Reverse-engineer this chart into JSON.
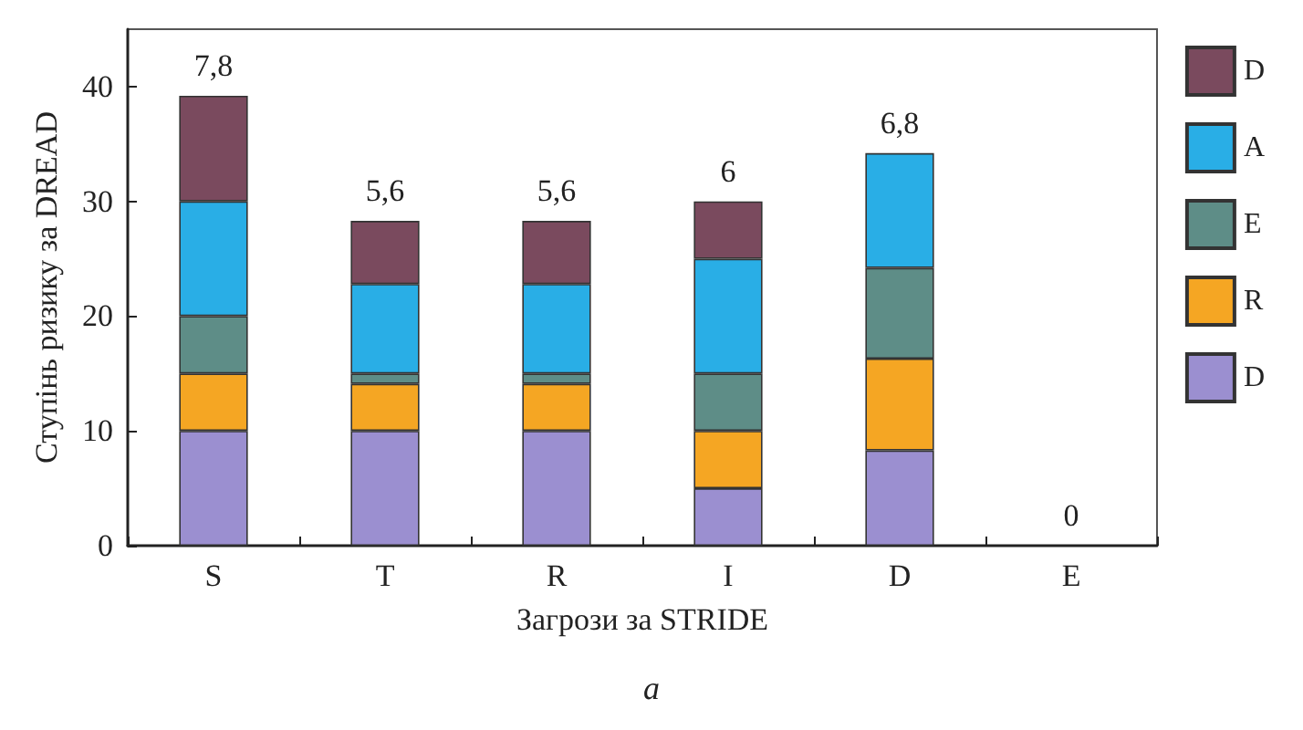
{
  "chart_data": {
    "type": "bar",
    "stacked": true,
    "xlabel": "Загрози за STRIDE",
    "ylabel": "Ступінь ризику за DREAD",
    "annotations": [
      {
        "text": "7,8",
        "x": "S",
        "y": 39.2
      },
      {
        "text": "5,6",
        "x": "T",
        "y": 28.3
      },
      {
        "text": "5,6",
        "x": "R",
        "y": 28.3
      },
      {
        "text": "6",
        "x": "I",
        "y": 30
      },
      {
        "text": "6,8",
        "x": "D",
        "y": 34.2
      },
      {
        "text": "0",
        "x": "E",
        "y": 0
      },
      "a"
    ],
    "categories": [
      "S",
      "T",
      "R",
      "I",
      "D",
      "E"
    ],
    "series": [
      {
        "name": "D",
        "color": "#9b8fd0",
        "values": [
          10,
          10,
          10,
          5,
          8.3,
          0
        ]
      },
      {
        "name": "R",
        "color": "#f5a623",
        "values": [
          5,
          4.1,
          4.1,
          5,
          8,
          0
        ]
      },
      {
        "name": "E",
        "color": "#5e8d87",
        "values": [
          5,
          0.9,
          0.9,
          5,
          7.9,
          0
        ]
      },
      {
        "name": "A",
        "color": "#29aee6",
        "values": [
          10,
          7.8,
          7.8,
          10,
          10,
          0
        ]
      },
      {
        "name": "D",
        "color": "#7a4a5e",
        "values": [
          9.2,
          5.5,
          5.5,
          5,
          0,
          0
        ]
      }
    ],
    "ylim": [
      0,
      45
    ],
    "yticks": [
      0,
      10,
      20,
      30,
      40
    ],
    "grid": false,
    "legend": "right"
  }
}
